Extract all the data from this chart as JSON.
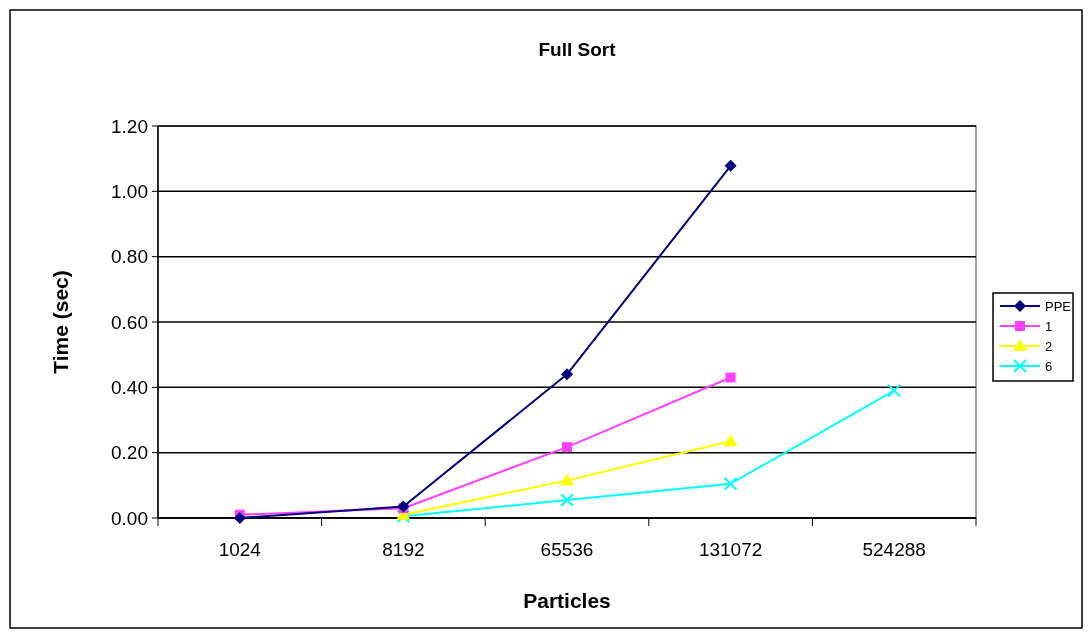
{
  "chart_data": {
    "type": "line",
    "title": "Full Sort",
    "xlabel": "Particles",
    "ylabel": "Time (sec)",
    "categories": [
      "1024",
      "8192",
      "65536",
      "131072",
      "524288"
    ],
    "ylim": [
      0,
      1.2
    ],
    "yticks": [
      {
        "value": 0,
        "label": "0.00"
      },
      {
        "value": 0.2,
        "label": "0.20"
      },
      {
        "value": 0.4,
        "label": "0.40"
      },
      {
        "value": 0.6,
        "label": "0.60"
      },
      {
        "value": 0.8,
        "label": "0.80"
      },
      {
        "value": 1,
        "label": "1.00"
      },
      {
        "value": 1.2,
        "label": "1.20"
      }
    ],
    "grid": "y",
    "legend": "right",
    "line_style": "solid",
    "series": [
      {
        "name": "PPE",
        "color": "#000080",
        "marker": "diamond",
        "values": [
          0.0,
          0.035,
          0.44,
          1.078,
          null
        ]
      },
      {
        "name": "1",
        "color": "#ff40ff",
        "marker": "square",
        "values": [
          0.01,
          0.03,
          0.217,
          0.43,
          null
        ]
      },
      {
        "name": "2",
        "color": "#ffff00",
        "marker": "triangle",
        "values": [
          null,
          0.01,
          0.115,
          0.235,
          null
        ]
      },
      {
        "name": "6",
        "color": "#00ffff",
        "marker": "cross",
        "values": [
          null,
          0.005,
          0.055,
          0.105,
          0.39
        ]
      }
    ]
  }
}
